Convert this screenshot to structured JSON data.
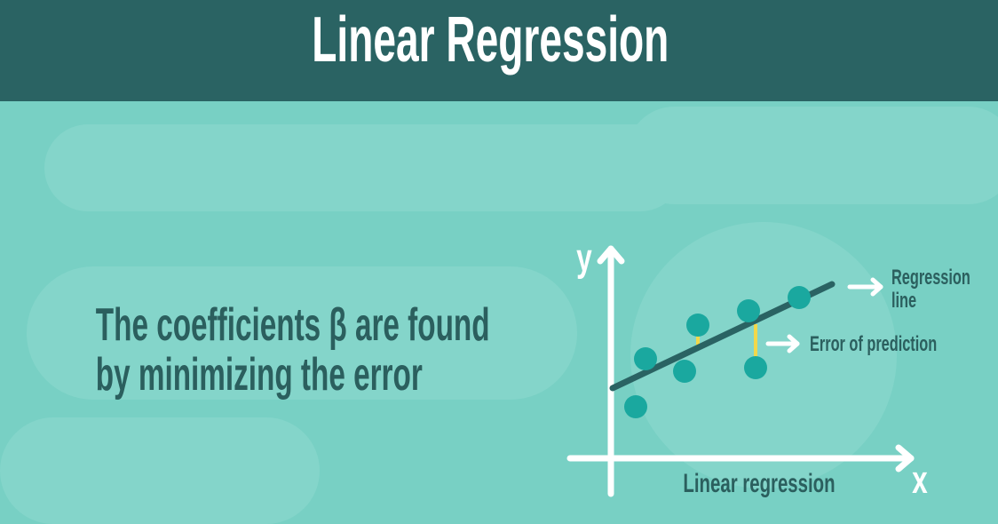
{
  "header": {
    "title": "Linear Regression"
  },
  "caption": {
    "line1": "The coefficients β are found",
    "line2": "by minimizing the error"
  },
  "diagram": {
    "y_axis_label": "y",
    "x_axis_label": "x",
    "x_caption": "Linear regression",
    "regression_label_line1": "Regression",
    "regression_label_line2": "line",
    "error_label": "Error of prediction"
  },
  "colors": {
    "header_bg": "#2a6363",
    "background": "#78d0c4",
    "text_dark": "#2b5f5e",
    "point": "#1aa89f",
    "regression_line": "#2a6363",
    "error_segment": "#f2d84a",
    "axis": "#ffffff"
  }
}
